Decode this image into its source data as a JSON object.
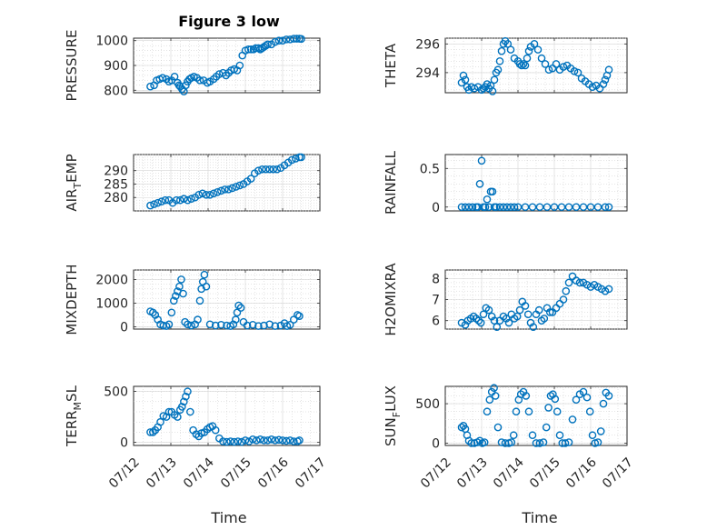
{
  "figure": {
    "title": "Figure 3 low",
    "xlabel": "Time",
    "x_tick_labels": [
      "07/12",
      "07/13",
      "07/14",
      "07/15",
      "07/16",
      "07/17"
    ],
    "marker_color": "#0072BD"
  },
  "chart_data": [
    {
      "type": "scatter",
      "ylabel": "PRESSURE",
      "xlim": [
        0,
        5
      ],
      "ylim": [
        790,
        1010
      ],
      "yticks": [
        800,
        900,
        1000
      ],
      "grid": true,
      "series": [
        {
          "name": "",
          "x": [
            0.45,
            0.55,
            0.62,
            0.7,
            0.78,
            0.88,
            0.95,
            1.02,
            1.1,
            1.18,
            1.22,
            1.25,
            1.3,
            1.35,
            1.4,
            1.45,
            1.5,
            1.55,
            1.62,
            1.7,
            1.78,
            1.88,
            1.98,
            2.05,
            2.15,
            2.22,
            2.3,
            2.4,
            2.48,
            2.55,
            2.62,
            2.7,
            2.78,
            2.85,
            2.92,
            3.0,
            3.08,
            3.15,
            3.22,
            3.28,
            3.35,
            3.4,
            3.45,
            3.5,
            3.55,
            3.6,
            3.7,
            3.8,
            3.9,
            4.0,
            4.1,
            4.2,
            4.3,
            4.38,
            4.45,
            4.5
          ],
          "y": [
            815,
            820,
            840,
            845,
            850,
            845,
            835,
            840,
            855,
            830,
            820,
            815,
            805,
            795,
            820,
            835,
            845,
            850,
            855,
            850,
            840,
            840,
            830,
            835,
            845,
            855,
            865,
            870,
            860,
            870,
            880,
            885,
            880,
            900,
            940,
            960,
            965,
            965,
            965,
            970,
            970,
            965,
            970,
            975,
            980,
            985,
            985,
            995,
            1000,
            1000,
            1005,
            1005,
            1008,
            1008,
            1008,
            1007
          ]
        }
      ]
    },
    {
      "type": "scatter",
      "ylabel": "THETA",
      "xlim": [
        0,
        5
      ],
      "ylim": [
        292.6,
        296.4
      ],
      "yticks": [
        294,
        296
      ],
      "grid": true,
      "series": [
        {
          "name": "",
          "x": [
            0.45,
            0.5,
            0.55,
            0.6,
            0.65,
            0.72,
            0.8,
            0.9,
            1.0,
            1.05,
            1.1,
            1.15,
            1.2,
            1.25,
            1.3,
            1.35,
            1.4,
            1.45,
            1.5,
            1.55,
            1.6,
            1.65,
            1.72,
            1.8,
            1.9,
            2.0,
            2.05,
            2.1,
            2.15,
            2.2,
            2.25,
            2.3,
            2.35,
            2.45,
            2.55,
            2.65,
            2.75,
            2.85,
            2.95,
            3.05,
            3.15,
            3.25,
            3.35,
            3.45,
            3.55,
            3.65,
            3.75,
            3.85,
            3.95,
            4.05,
            4.15,
            4.25,
            4.35,
            4.4,
            4.45,
            4.5
          ],
          "y": [
            293.3,
            293.8,
            293.5,
            293,
            292.8,
            293,
            292.9,
            293,
            292.8,
            292.9,
            293,
            293.2,
            292.9,
            293.1,
            292.7,
            293.5,
            294,
            294.2,
            294.8,
            295.5,
            296,
            296.2,
            296,
            295.6,
            295,
            294.8,
            294.6,
            294.5,
            294.6,
            294.5,
            295,
            295.5,
            295.8,
            296,
            295.6,
            295,
            294.6,
            294.2,
            294.3,
            294.6,
            294.2,
            294.4,
            294.5,
            294.3,
            294.1,
            294,
            293.6,
            293.4,
            293.2,
            293,
            293.1,
            292.9,
            293.2,
            293.5,
            293.8,
            294.2
          ]
        }
      ]
    },
    {
      "type": "scatter",
      "ylabel": "AIR_TEMP",
      "xlim": [
        0,
        5
      ],
      "ylim": [
        275,
        296
      ],
      "yticks": [
        280,
        285,
        290
      ],
      "grid": true,
      "series": [
        {
          "name": "",
          "x": [
            0.45,
            0.55,
            0.65,
            0.75,
            0.85,
            0.95,
            1.05,
            1.15,
            1.25,
            1.35,
            1.45,
            1.55,
            1.65,
            1.75,
            1.85,
            1.95,
            2.05,
            2.15,
            2.25,
            2.35,
            2.45,
            2.55,
            2.65,
            2.75,
            2.85,
            2.95,
            3.05,
            3.15,
            3.25,
            3.35,
            3.45,
            3.55,
            3.65,
            3.75,
            3.85,
            3.95,
            4.05,
            4.15,
            4.25,
            4.35,
            4.45,
            4.5
          ],
          "y": [
            277,
            277.5,
            278,
            278.5,
            279,
            279,
            278,
            279,
            279,
            279.5,
            279,
            279.5,
            280,
            281,
            281.5,
            281,
            281,
            281.5,
            282,
            282.5,
            283,
            283,
            283.5,
            284,
            284.5,
            285,
            286,
            287,
            289,
            290,
            290.5,
            290.5,
            290.5,
            290.5,
            290.5,
            291,
            292,
            293,
            294,
            294.5,
            295,
            295
          ]
        }
      ]
    },
    {
      "type": "scatter",
      "ylabel": "RAINFALL",
      "xlim": [
        0,
        5
      ],
      "ylim": [
        -0.05,
        0.68
      ],
      "yticks": [
        0,
        0.5
      ],
      "grid": true,
      "series": [
        {
          "name": "",
          "x": [
            0.45,
            0.55,
            0.65,
            0.75,
            0.85,
            0.9,
            0.95,
            1.0,
            1.05,
            1.1,
            1.15,
            1.2,
            1.25,
            1.3,
            1.35,
            1.4,
            1.5,
            1.6,
            1.7,
            1.8,
            1.9,
            2.0,
            2.2,
            2.4,
            2.6,
            2.8,
            3.0,
            3.2,
            3.4,
            3.6,
            3.8,
            4.0,
            4.2,
            4.4,
            4.5
          ],
          "y": [
            0,
            0,
            0,
            0,
            0,
            0,
            0.3,
            0.6,
            0,
            0,
            0.1,
            0,
            0.2,
            0.2,
            0,
            0,
            0,
            0,
            0,
            0,
            0,
            0,
            0,
            0,
            0,
            0,
            0,
            0,
            0,
            0,
            0,
            0,
            0,
            0,
            0
          ]
        }
      ]
    },
    {
      "type": "scatter",
      "ylabel": "MIXDEPTH",
      "xlim": [
        0,
        5
      ],
      "ylim": [
        -100,
        2400
      ],
      "yticks": [
        0,
        1000,
        2000
      ],
      "grid": true,
      "series": [
        {
          "name": "",
          "x": [
            0.45,
            0.52,
            0.58,
            0.65,
            0.72,
            0.8,
            0.88,
            0.95,
            1.02,
            1.08,
            1.13,
            1.18,
            1.23,
            1.28,
            1.33,
            1.38,
            1.45,
            1.55,
            1.65,
            1.72,
            1.78,
            1.82,
            1.86,
            1.9,
            1.95,
            2.05,
            2.2,
            2.35,
            2.5,
            2.6,
            2.68,
            2.74,
            2.78,
            2.82,
            2.88,
            2.95,
            3.05,
            3.2,
            3.35,
            3.5,
            3.65,
            3.8,
            3.95,
            4.05,
            4.12,
            4.2,
            4.3,
            4.4,
            4.45
          ],
          "y": [
            650,
            600,
            500,
            300,
            100,
            50,
            30,
            100,
            600,
            1100,
            1300,
            1500,
            1700,
            2000,
            1400,
            200,
            100,
            50,
            100,
            300,
            1100,
            1600,
            1900,
            2200,
            1700,
            100,
            50,
            80,
            50,
            30,
            100,
            300,
            600,
            900,
            800,
            200,
            50,
            80,
            30,
            50,
            100,
            30,
            50,
            150,
            30,
            80,
            300,
            500,
            450
          ]
        }
      ]
    },
    {
      "type": "scatter",
      "ylabel": "H2OMIXRA",
      "xlim": [
        0,
        5
      ],
      "ylim": [
        5.6,
        8.4
      ],
      "yticks": [
        6,
        7,
        8
      ],
      "grid": true,
      "series": [
        {
          "name": "",
          "x": [
            0.45,
            0.55,
            0.62,
            0.7,
            0.78,
            0.85,
            0.92,
            0.98,
            1.05,
            1.12,
            1.2,
            1.28,
            1.35,
            1.42,
            1.5,
            1.6,
            1.68,
            1.75,
            1.82,
            1.9,
            1.98,
            2.05,
            2.12,
            2.2,
            2.28,
            2.35,
            2.42,
            2.5,
            2.58,
            2.65,
            2.72,
            2.8,
            2.88,
            2.95,
            3.05,
            3.15,
            3.25,
            3.32,
            3.4,
            3.5,
            3.6,
            3.7,
            3.8,
            3.9,
            4.0,
            4.1,
            4.2,
            4.3,
            4.4,
            4.5
          ],
          "y": [
            5.9,
            5.8,
            6,
            6.1,
            6.2,
            6.1,
            6,
            5.9,
            6.3,
            6.6,
            6.5,
            6.2,
            6,
            5.7,
            6,
            6.2,
            6.1,
            5.9,
            6.3,
            6.1,
            6.2,
            6.5,
            6.9,
            6.7,
            6.3,
            5.9,
            5.7,
            6.3,
            6.5,
            6,
            6.1,
            6.6,
            6.4,
            6.4,
            6.6,
            6.8,
            7,
            7.4,
            7.8,
            8.1,
            7.9,
            7.8,
            7.8,
            7.7,
            7.6,
            7.7,
            7.6,
            7.5,
            7.4,
            7.5
          ]
        }
      ]
    },
    {
      "type": "scatter",
      "ylabel": "TERR_MSL",
      "xlim": [
        0,
        5
      ],
      "ylim": [
        -30,
        550
      ],
      "yticks": [
        0,
        500
      ],
      "grid": true,
      "series": [
        {
          "name": "",
          "x": [
            0.45,
            0.52,
            0.58,
            0.65,
            0.72,
            0.8,
            0.88,
            0.95,
            1.02,
            1.1,
            1.18,
            1.25,
            1.3,
            1.35,
            1.4,
            1.45,
            1.52,
            1.6,
            1.68,
            1.75,
            1.82,
            1.9,
            1.98,
            2.05,
            2.12,
            2.2,
            2.3,
            2.4,
            2.5,
            2.6,
            2.7,
            2.8,
            2.9,
            3.0,
            3.1,
            3.2,
            3.3,
            3.4,
            3.5,
            3.6,
            3.7,
            3.8,
            3.9,
            4.0,
            4.1,
            4.2,
            4.3,
            4.4,
            4.45
          ],
          "y": [
            100,
            100,
            120,
            150,
            200,
            260,
            250,
            300,
            300,
            270,
            250,
            320,
            350,
            400,
            450,
            500,
            300,
            120,
            80,
            60,
            90,
            100,
            130,
            150,
            160,
            120,
            40,
            10,
            5,
            10,
            5,
            10,
            5,
            20,
            10,
            30,
            20,
            30,
            20,
            20,
            30,
            20,
            25,
            20,
            15,
            20,
            10,
            10,
            20
          ]
        }
      ]
    },
    {
      "type": "scatter",
      "ylabel": "SUN_FLUX",
      "xlim": [
        0,
        5
      ],
      "ylim": [
        -30,
        720
      ],
      "yticks": [
        0,
        500
      ],
      "grid": true,
      "series": [
        {
          "name": "",
          "x": [
            0.45,
            0.5,
            0.55,
            0.6,
            0.65,
            0.72,
            0.8,
            0.88,
            0.95,
            1.02,
            1.08,
            1.15,
            1.22,
            1.28,
            1.34,
            1.38,
            1.45,
            1.55,
            1.65,
            1.75,
            1.82,
            1.88,
            1.95,
            2.02,
            2.08,
            2.15,
            2.22,
            2.3,
            2.4,
            2.5,
            2.6,
            2.7,
            2.78,
            2.84,
            2.9,
            2.96,
            3.02,
            3.08,
            3.15,
            3.22,
            3.3,
            3.4,
            3.5,
            3.6,
            3.7,
            3.8,
            3.9,
            3.98,
            4.05,
            4.12,
            4.2,
            4.28,
            4.35,
            4.42,
            4.5
          ],
          "y": [
            200,
            220,
            180,
            100,
            30,
            0,
            0,
            10,
            30,
            0,
            10,
            400,
            550,
            650,
            700,
            600,
            200,
            10,
            0,
            0,
            10,
            100,
            400,
            550,
            620,
            650,
            600,
            400,
            100,
            0,
            0,
            10,
            200,
            450,
            600,
            620,
            560,
            400,
            100,
            0,
            0,
            10,
            300,
            550,
            620,
            650,
            580,
            400,
            100,
            0,
            10,
            150,
            500,
            640,
            600
          ]
        }
      ]
    }
  ]
}
